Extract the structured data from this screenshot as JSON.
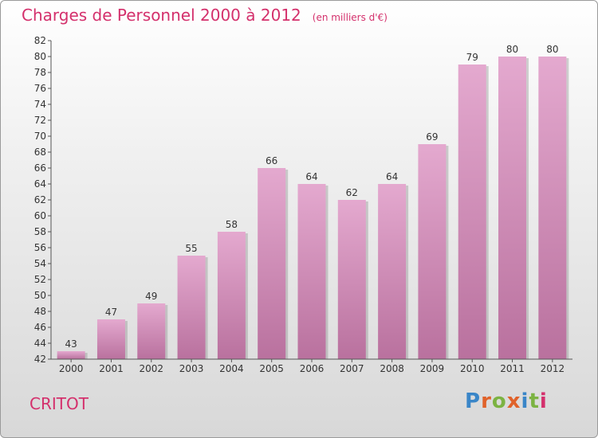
{
  "header": {
    "title": "Charges de Personnel 2000 à 2012",
    "unit": "(en milliers d'€)"
  },
  "footer": {
    "commune": "CRITOT",
    "logo": "Proxiti"
  },
  "colors": {
    "title": "#d4306c",
    "bar_top": "#e4a9cf",
    "bar_bottom": "#b9719e"
  },
  "chart_data": {
    "type": "bar",
    "title": "Charges de Personnel 2000 à 2012",
    "subtitle": "(en milliers d'€)",
    "categories": [
      "2000",
      "2001",
      "2002",
      "2003",
      "2004",
      "2005",
      "2006",
      "2007",
      "2008",
      "2009",
      "2010",
      "2011",
      "2012"
    ],
    "values": [
      43,
      47,
      49,
      55,
      58,
      66,
      64,
      62,
      64,
      69,
      79,
      80,
      80
    ],
    "ylim": [
      42,
      82
    ],
    "yticks": [
      42,
      44,
      46,
      48,
      50,
      52,
      54,
      56,
      58,
      60,
      62,
      64,
      66,
      68,
      70,
      72,
      74,
      76,
      78,
      80,
      82
    ],
    "grid": false,
    "data_labels": true
  }
}
